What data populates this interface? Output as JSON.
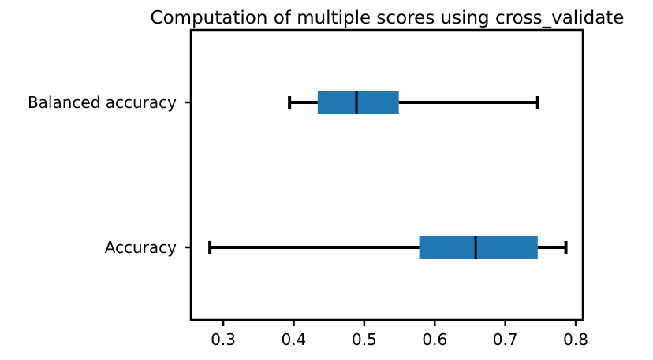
{
  "chart_data": {
    "type": "boxplot",
    "title": "Computation of multiple scores using cross_validate",
    "xlabel": "",
    "ylabel": "",
    "orientation": "horizontal",
    "xlim": [
      0.254,
      0.81
    ],
    "xticks": [
      0.3,
      0.4,
      0.5,
      0.6,
      0.7,
      0.8
    ],
    "xtick_labels": [
      "0.3",
      "0.4",
      "0.5",
      "0.6",
      "0.7",
      "0.8"
    ],
    "grid": false,
    "categories": [
      "Accuracy",
      "Balanced accuracy"
    ],
    "boxes": [
      {
        "label": "Accuracy",
        "whislo": 0.281,
        "q1": 0.578,
        "med": 0.658,
        "q3": 0.746,
        "whishi": 0.786
      },
      {
        "label": "Balanced accuracy",
        "whislo": 0.394,
        "q1": 0.434,
        "med": 0.489,
        "q3": 0.549,
        "whishi": 0.746
      }
    ],
    "colors": {
      "box": "#1f77b4",
      "line": "#000000"
    }
  }
}
